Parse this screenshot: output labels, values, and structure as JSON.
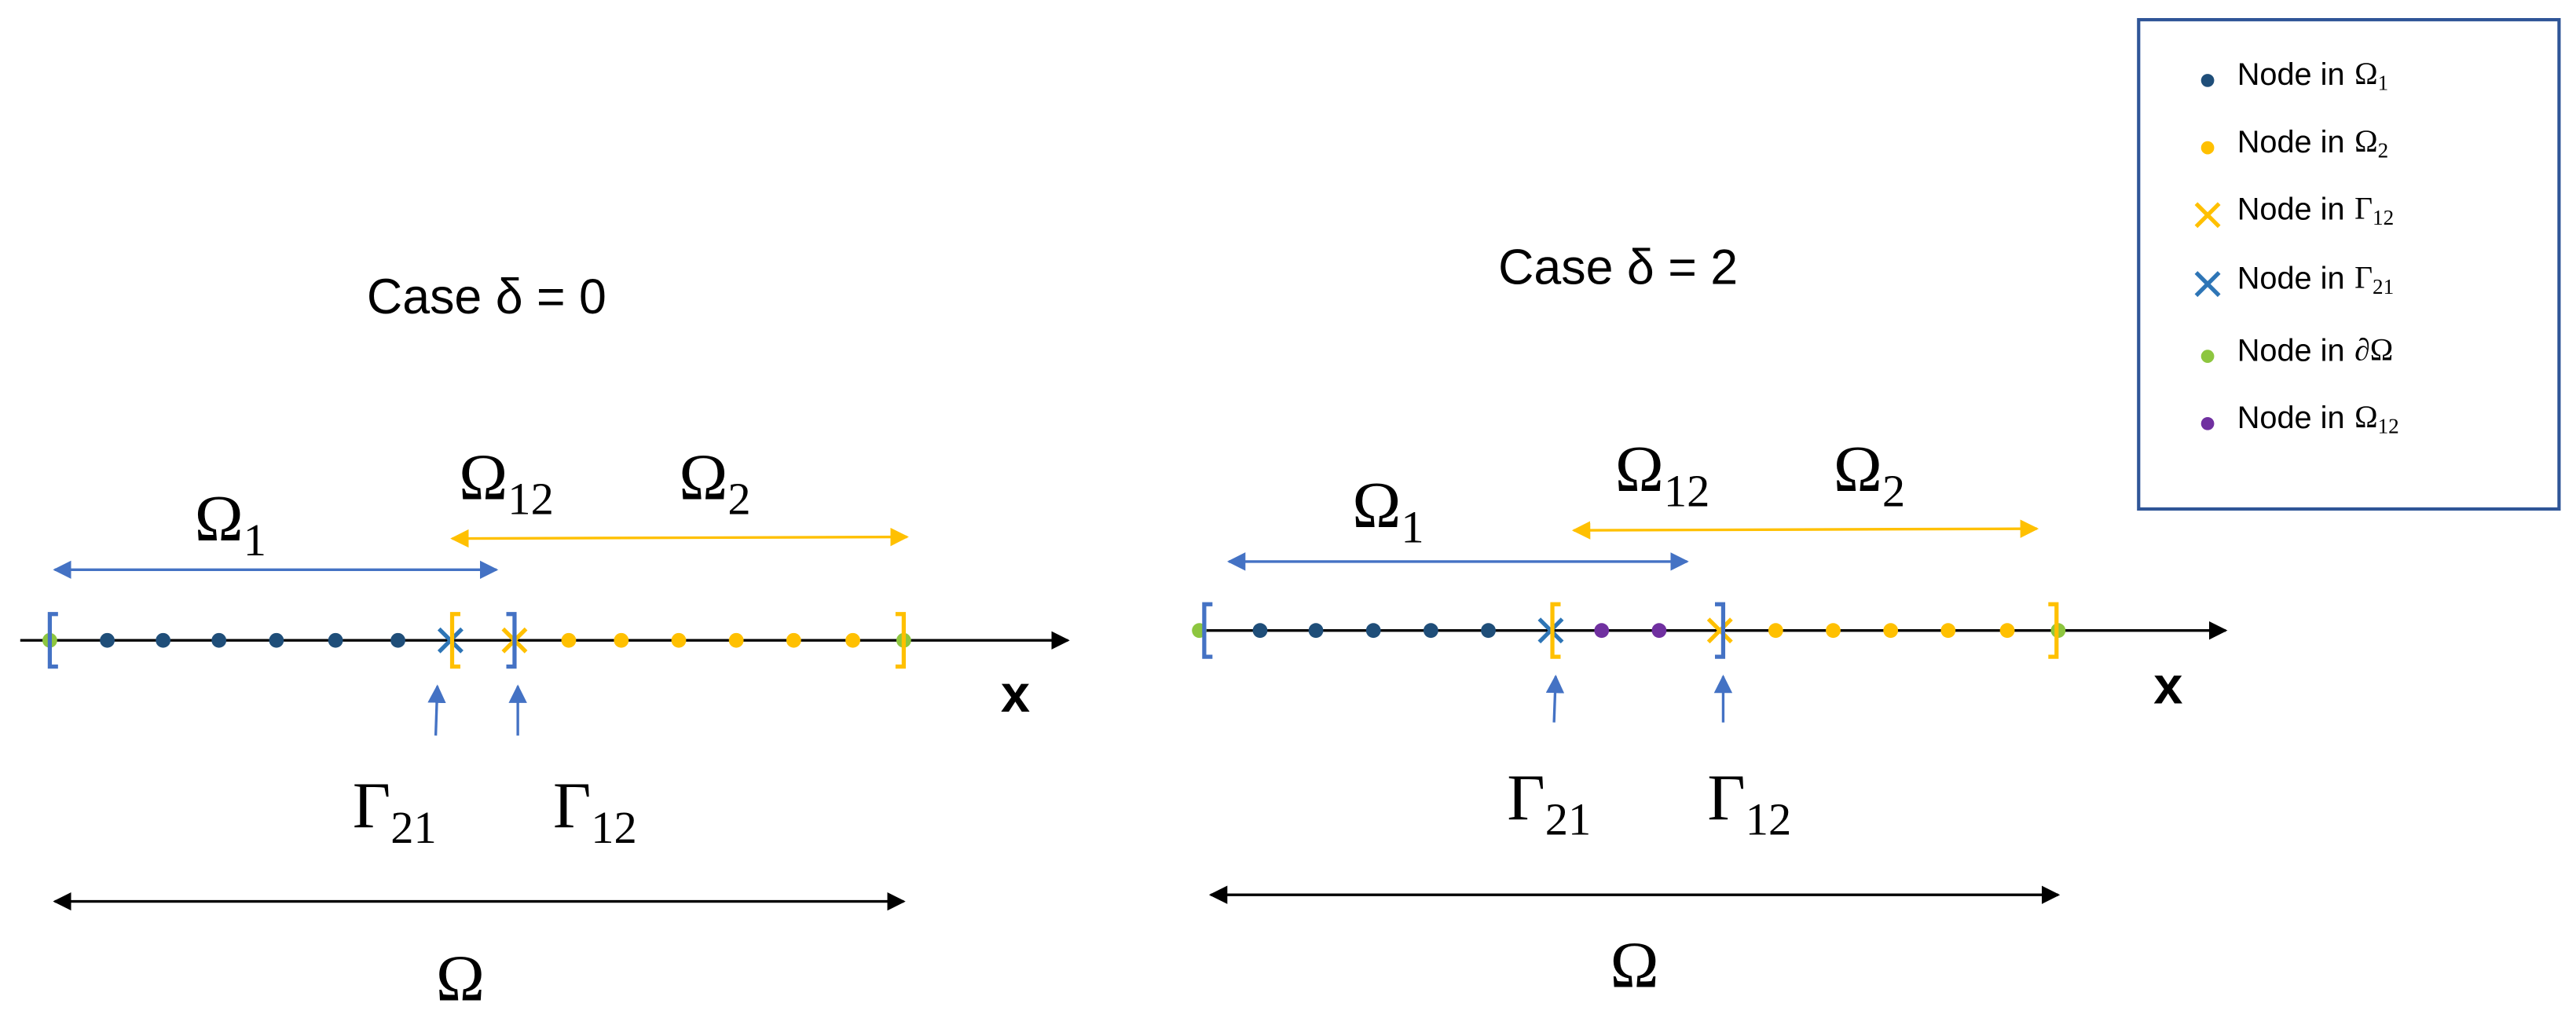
{
  "cases": [
    {
      "title": "Case δ = 0",
      "omega1": {
        "base": "Ω",
        "sub": "1"
      },
      "omega12": {
        "base": "Ω",
        "sub": "12"
      },
      "omega2": {
        "base": "Ω",
        "sub": "2"
      },
      "gamma21": {
        "base": "Γ",
        "sub": "21"
      },
      "gamma12": {
        "base": "Γ",
        "sub": "12"
      },
      "omega": "Ω",
      "axis": "x"
    },
    {
      "title": "Case δ = 2",
      "omega1": {
        "base": "Ω",
        "sub": "1"
      },
      "omega12": {
        "base": "Ω",
        "sub": "12"
      },
      "omega2": {
        "base": "Ω",
        "sub": "2"
      },
      "gamma21": {
        "base": "Γ",
        "sub": "21"
      },
      "gamma12": {
        "base": "Γ",
        "sub": "12"
      },
      "omega": "Ω",
      "axis": "x"
    }
  ],
  "legend": [
    {
      "text": "Node in",
      "base": "Ω",
      "sub": "1"
    },
    {
      "text": "Node in",
      "base": "Ω",
      "sub": "2"
    },
    {
      "text": "Node in",
      "base": "Γ",
      "sub": "12"
    },
    {
      "text": "Node in",
      "base": "Γ",
      "sub": "21"
    },
    {
      "text": "Node in",
      "base": "∂Ω"
    },
    {
      "text": "Node in",
      "base": "Ω",
      "sub": "12"
    }
  ]
}
